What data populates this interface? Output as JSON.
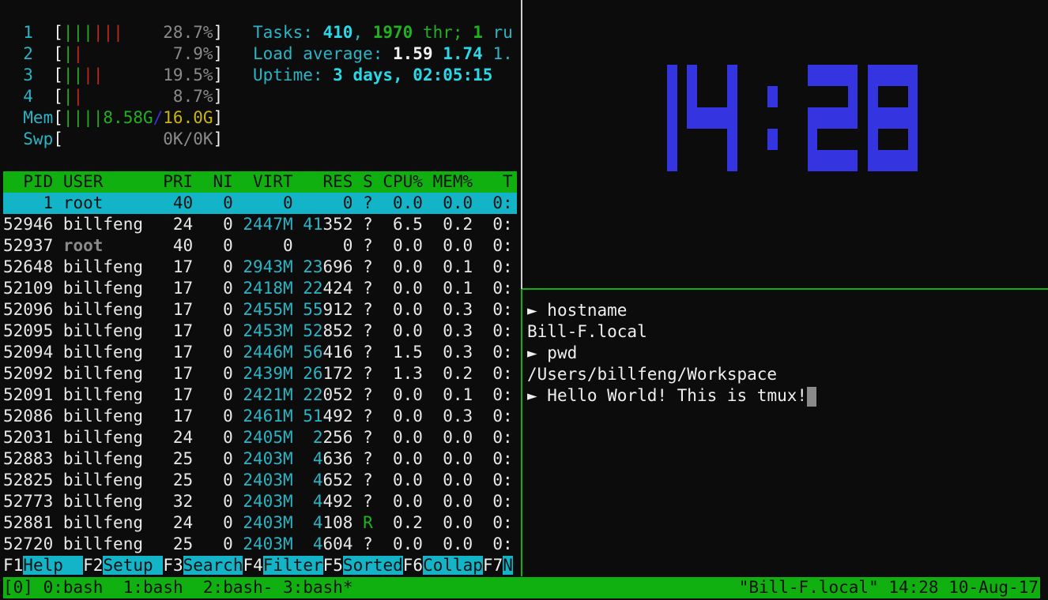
{
  "htop": {
    "meters": [
      {
        "label": "1",
        "bars": [
          "green",
          "green",
          "green",
          "red",
          "red",
          "red"
        ],
        "value": "28.7%"
      },
      {
        "label": "2",
        "bars": [
          "green",
          "red"
        ],
        "value": "7.9%"
      },
      {
        "label": "3",
        "bars": [
          "green",
          "green",
          "red",
          "red"
        ],
        "value": "19.5%"
      },
      {
        "label": "4",
        "bars": [
          "green",
          "red"
        ],
        "value": "8.7%"
      }
    ],
    "mem": {
      "label": "Mem",
      "bars": [
        "green",
        "green",
        "green",
        "green"
      ],
      "used": "8.58G",
      "sep": "/",
      "total": "16.0G"
    },
    "swp": {
      "label": "Swp",
      "value": "0K/0K"
    },
    "tasks": {
      "label": "Tasks: ",
      "count": "410",
      ",1": ", ",
      "threads": "1970",
      "thr_label": " thr; ",
      "running": "1",
      "ru": " ru"
    },
    "load": {
      "label": "Load average: ",
      "l1": "1.59",
      "l5": "1.74",
      "l15": "1."
    },
    "uptime": {
      "label": "Uptime: ",
      "value": "3 days, 02:05:15"
    },
    "columns": {
      "pid": "PID",
      "user": "USER",
      "pri": "PRI",
      "ni": "NI",
      "virt": "VIRT",
      "res": "RES",
      "s": "S",
      "cpu": "CPU%",
      "mem": "MEM%",
      "time": "T"
    },
    "processes": [
      {
        "pid": "1",
        "user": "root",
        "pri": "40",
        "ni": "0",
        "virt": "0",
        "res": [
          "",
          "0"
        ],
        "s": "?",
        "cpu": "0.0",
        "mem": "0.0",
        "time": "0:",
        "selected": true
      },
      {
        "pid": "52946",
        "user": "billfeng",
        "pri": "24",
        "ni": "0",
        "virt": "2447M",
        "res": [
          "41",
          "352"
        ],
        "s": "?",
        "cpu": "6.5",
        "mem": "0.2",
        "time": "0:"
      },
      {
        "pid": "52937",
        "user": "root",
        "pri": "40",
        "ni": "0",
        "virt": "0",
        "res": [
          "",
          "0"
        ],
        "s": "?",
        "cpu": "0.0",
        "mem": "0.0",
        "time": "0:",
        "dim_user": true
      },
      {
        "pid": "52648",
        "user": "billfeng",
        "pri": "17",
        "ni": "0",
        "virt": "2943M",
        "res": [
          "23",
          "696"
        ],
        "s": "?",
        "cpu": "0.0",
        "mem": "0.1",
        "time": "0:"
      },
      {
        "pid": "52109",
        "user": "billfeng",
        "pri": "17",
        "ni": "0",
        "virt": "2418M",
        "res": [
          "22",
          "424"
        ],
        "s": "?",
        "cpu": "0.0",
        "mem": "0.1",
        "time": "0:"
      },
      {
        "pid": "52096",
        "user": "billfeng",
        "pri": "17",
        "ni": "0",
        "virt": "2455M",
        "res": [
          "55",
          "912"
        ],
        "s": "?",
        "cpu": "0.0",
        "mem": "0.3",
        "time": "0:"
      },
      {
        "pid": "52095",
        "user": "billfeng",
        "pri": "17",
        "ni": "0",
        "virt": "2453M",
        "res": [
          "52",
          "852"
        ],
        "s": "?",
        "cpu": "0.0",
        "mem": "0.3",
        "time": "0:"
      },
      {
        "pid": "52094",
        "user": "billfeng",
        "pri": "17",
        "ni": "0",
        "virt": "2446M",
        "res": [
          "56",
          "416"
        ],
        "s": "?",
        "cpu": "1.5",
        "mem": "0.3",
        "time": "0:"
      },
      {
        "pid": "52092",
        "user": "billfeng",
        "pri": "17",
        "ni": "0",
        "virt": "2439M",
        "res": [
          "26",
          "172"
        ],
        "s": "?",
        "cpu": "1.3",
        "mem": "0.2",
        "time": "0:"
      },
      {
        "pid": "52091",
        "user": "billfeng",
        "pri": "17",
        "ni": "0",
        "virt": "2421M",
        "res": [
          "22",
          "052"
        ],
        "s": "?",
        "cpu": "0.0",
        "mem": "0.1",
        "time": "0:"
      },
      {
        "pid": "52086",
        "user": "billfeng",
        "pri": "17",
        "ni": "0",
        "virt": "2461M",
        "res": [
          "51",
          "492"
        ],
        "s": "?",
        "cpu": "0.0",
        "mem": "0.3",
        "time": "0:"
      },
      {
        "pid": "52031",
        "user": "billfeng",
        "pri": "24",
        "ni": "0",
        "virt": "2405M",
        "res": [
          "2",
          "256"
        ],
        "s": "?",
        "cpu": "0.0",
        "mem": "0.0",
        "time": "0:"
      },
      {
        "pid": "52883",
        "user": "billfeng",
        "pri": "25",
        "ni": "0",
        "virt": "2403M",
        "res": [
          "4",
          "636"
        ],
        "s": "?",
        "cpu": "0.0",
        "mem": "0.0",
        "time": "0:"
      },
      {
        "pid": "52825",
        "user": "billfeng",
        "pri": "25",
        "ni": "0",
        "virt": "2403M",
        "res": [
          "4",
          "652"
        ],
        "s": "?",
        "cpu": "0.0",
        "mem": "0.0",
        "time": "0:"
      },
      {
        "pid": "52773",
        "user": "billfeng",
        "pri": "32",
        "ni": "0",
        "virt": "2403M",
        "res": [
          "4",
          "492"
        ],
        "s": "?",
        "cpu": "0.0",
        "mem": "0.0",
        "time": "0:"
      },
      {
        "pid": "52881",
        "user": "billfeng",
        "pri": "24",
        "ni": "0",
        "virt": "2403M",
        "res": [
          "4",
          "108"
        ],
        "s": "R",
        "cpu": "0.2",
        "mem": "0.0",
        "time": "0:"
      },
      {
        "pid": "52720",
        "user": "billfeng",
        "pri": "25",
        "ni": "0",
        "virt": "2403M",
        "res": [
          "4",
          "604"
        ],
        "s": "?",
        "cpu": "0.0",
        "mem": "0.0",
        "time": "0:"
      }
    ],
    "function_keys": [
      {
        "key": "F1",
        "label": "Help  "
      },
      {
        "key": "F2",
        "label": "Setup "
      },
      {
        "key": "F3",
        "label": "Search"
      },
      {
        "key": "F4",
        "label": "Filter"
      },
      {
        "key": "F5",
        "label": "Sorted"
      },
      {
        "key": "F6",
        "label": "Collap"
      },
      {
        "key": "F7",
        "label": "N"
      }
    ]
  },
  "clock": {
    "time": "14:28",
    "color": "#3434e0"
  },
  "shell": {
    "lines": [
      {
        "prompt": "► ",
        "text": "hostname"
      },
      {
        "prompt": "",
        "text": "Bill-F.local"
      },
      {
        "prompt": "► ",
        "text": "pwd"
      },
      {
        "prompt": "",
        "text": "/Users/billfeng/Workspace"
      },
      {
        "prompt": "► ",
        "text": "Hello World! This is tmux!",
        "cursor": true
      }
    ]
  },
  "tmux": {
    "session": "[0]",
    "windows": [
      "0:bash",
      "1:bash",
      "2:bash-",
      "3:bash*"
    ],
    "right": "\"Bill-F.local\" 14:28 10-Aug-17",
    "status_color": "#0fb00f"
  }
}
